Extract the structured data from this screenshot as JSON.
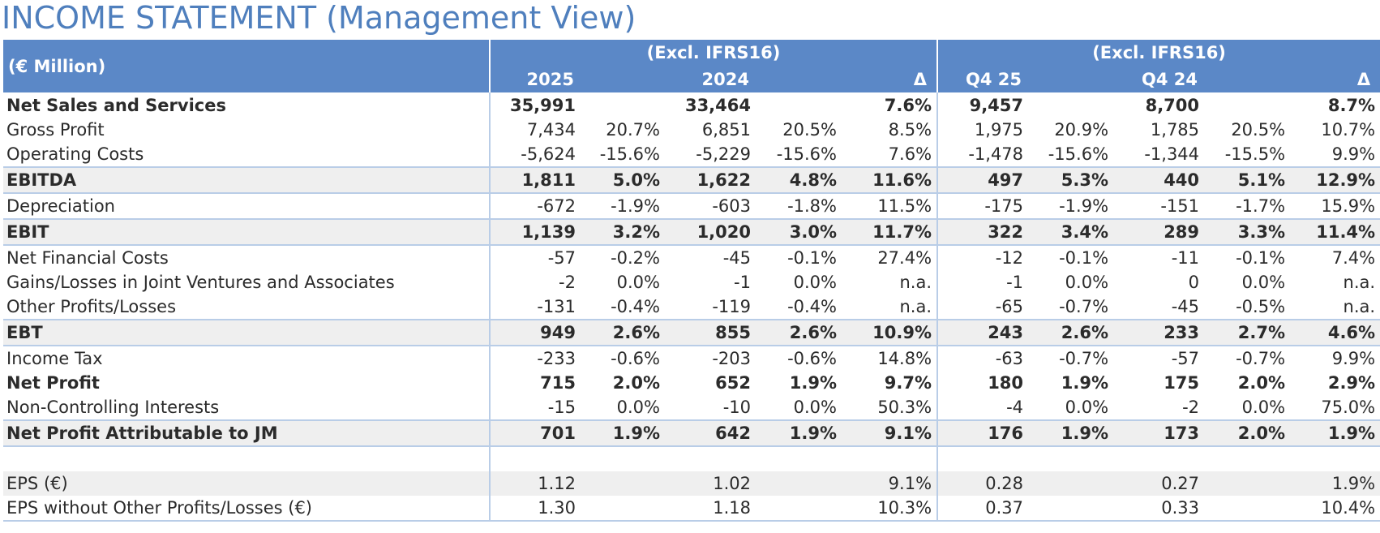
{
  "title": "INCOME STATEMENT (Management View)",
  "header": {
    "unit_label": "(€ Million)",
    "group1": "(Excl. IFRS16)",
    "group2": "(Excl. IFRS16)",
    "col_2025": "2025",
    "col_2024": "2024",
    "col_delta1": "Δ",
    "col_q425": "Q4 25",
    "col_q424": "Q4 24",
    "col_delta2": "Δ"
  },
  "rows": [
    {
      "label": "Net Sales and Services",
      "v2025": "35,991",
      "p2025": "",
      "v2024": "33,464",
      "p2024": "",
      "d1": "7.6%",
      "vq425": "9,457",
      "pq425": "",
      "vq424": "8,700",
      "pq424": "",
      "d2": "8.7%"
    },
    {
      "label": "Gross Profit",
      "v2025": "7,434",
      "p2025": "20.7%",
      "v2024": "6,851",
      "p2024": "20.5%",
      "d1": "8.5%",
      "vq425": "1,975",
      "pq425": "20.9%",
      "vq424": "1,785",
      "pq424": "20.5%",
      "d2": "10.7%"
    },
    {
      "label": "Operating Costs",
      "v2025": "-5,624",
      "p2025": "-15.6%",
      "v2024": "-5,229",
      "p2024": "-15.6%",
      "d1": "7.6%",
      "vq425": "-1,478",
      "pq425": "-15.6%",
      "vq424": "-1,344",
      "pq424": "-15.5%",
      "d2": "9.9%"
    },
    {
      "label": "EBITDA",
      "v2025": "1,811",
      "p2025": "5.0%",
      "v2024": "1,622",
      "p2024": "4.8%",
      "d1": "11.6%",
      "vq425": "497",
      "pq425": "5.3%",
      "vq424": "440",
      "pq424": "5.1%",
      "d2": "12.9%"
    },
    {
      "label": "Depreciation",
      "v2025": "-672",
      "p2025": "-1.9%",
      "v2024": "-603",
      "p2024": "-1.8%",
      "d1": "11.5%",
      "vq425": "-175",
      "pq425": "-1.9%",
      "vq424": "-151",
      "pq424": "-1.7%",
      "d2": "15.9%"
    },
    {
      "label": "EBIT",
      "v2025": "1,139",
      "p2025": "3.2%",
      "v2024": "1,020",
      "p2024": "3.0%",
      "d1": "11.7%",
      "vq425": "322",
      "pq425": "3.4%",
      "vq424": "289",
      "pq424": "3.3%",
      "d2": "11.4%"
    },
    {
      "label": "Net Financial Costs",
      "v2025": "-57",
      "p2025": "-0.2%",
      "v2024": "-45",
      "p2024": "-0.1%",
      "d1": "27.4%",
      "vq425": "-12",
      "pq425": "-0.1%",
      "vq424": "-11",
      "pq424": "-0.1%",
      "d2": "7.4%"
    },
    {
      "label": "Gains/Losses in Joint Ventures and Associates",
      "v2025": "-2",
      "p2025": "0.0%",
      "v2024": "-1",
      "p2024": "0.0%",
      "d1": "n.a.",
      "vq425": "-1",
      "pq425": "0.0%",
      "vq424": "0",
      "pq424": "0.0%",
      "d2": "n.a."
    },
    {
      "label": "Other Profits/Losses",
      "v2025": "-131",
      "p2025": "-0.4%",
      "v2024": "-119",
      "p2024": "-0.4%",
      "d1": "n.a.",
      "vq425": "-65",
      "pq425": "-0.7%",
      "vq424": "-45",
      "pq424": "-0.5%",
      "d2": "n.a."
    },
    {
      "label": "EBT",
      "v2025": "949",
      "p2025": "2.6%",
      "v2024": "855",
      "p2024": "2.6%",
      "d1": "10.9%",
      "vq425": "243",
      "pq425": "2.6%",
      "vq424": "233",
      "pq424": "2.7%",
      "d2": "4.6%"
    },
    {
      "label": "Income Tax",
      "v2025": "-233",
      "p2025": "-0.6%",
      "v2024": "-203",
      "p2024": "-0.6%",
      "d1": "14.8%",
      "vq425": "-63",
      "pq425": "-0.7%",
      "vq424": "-57",
      "pq424": "-0.7%",
      "d2": "9.9%"
    },
    {
      "label": "Net Profit",
      "v2025": "715",
      "p2025": "2.0%",
      "v2024": "652",
      "p2024": "1.9%",
      "d1": "9.7%",
      "vq425": "180",
      "pq425": "1.9%",
      "vq424": "175",
      "pq424": "2.0%",
      "d2": "2.9%"
    },
    {
      "label": "Non-Controlling Interests",
      "v2025": "-15",
      "p2025": "0.0%",
      "v2024": "-10",
      "p2024": "0.0%",
      "d1": "50.3%",
      "vq425": "-4",
      "pq425": "0.0%",
      "vq424": "-2",
      "pq424": "0.0%",
      "d2": "75.0%"
    },
    {
      "label": "Net Profit Attributable to JM",
      "v2025": "701",
      "p2025": "1.9%",
      "v2024": "642",
      "p2024": "1.9%",
      "d1": "9.1%",
      "vq425": "176",
      "pq425": "1.9%",
      "vq424": "173",
      "pq424": "2.0%",
      "d2": "1.9%"
    },
    {
      "label": "",
      "v2025": "",
      "p2025": "",
      "v2024": "",
      "p2024": "",
      "d1": "",
      "vq425": "",
      "pq425": "",
      "vq424": "",
      "pq424": "",
      "d2": ""
    },
    {
      "label": "EPS (€)",
      "v2025": "1.12",
      "p2025": "",
      "v2024": "1.02",
      "p2024": "",
      "d1": "9.1%",
      "vq425": "0.28",
      "pq425": "",
      "vq424": "0.27",
      "pq424": "",
      "d2": "1.9%"
    },
    {
      "label": "EPS without Other Profits/Losses (€)",
      "v2025": "1.30",
      "p2025": "",
      "v2024": "1.18",
      "p2024": "",
      "d1": "10.3%",
      "vq425": "0.37",
      "pq425": "",
      "vq424": "0.33",
      "pq424": "",
      "d2": "10.4%"
    }
  ],
  "colors": {
    "title": "#4f7fbd",
    "header_bg": "#5b88c7",
    "header_text": "#ffffff",
    "highlight_row": "#efefef",
    "rule": "#b9cde7"
  }
}
